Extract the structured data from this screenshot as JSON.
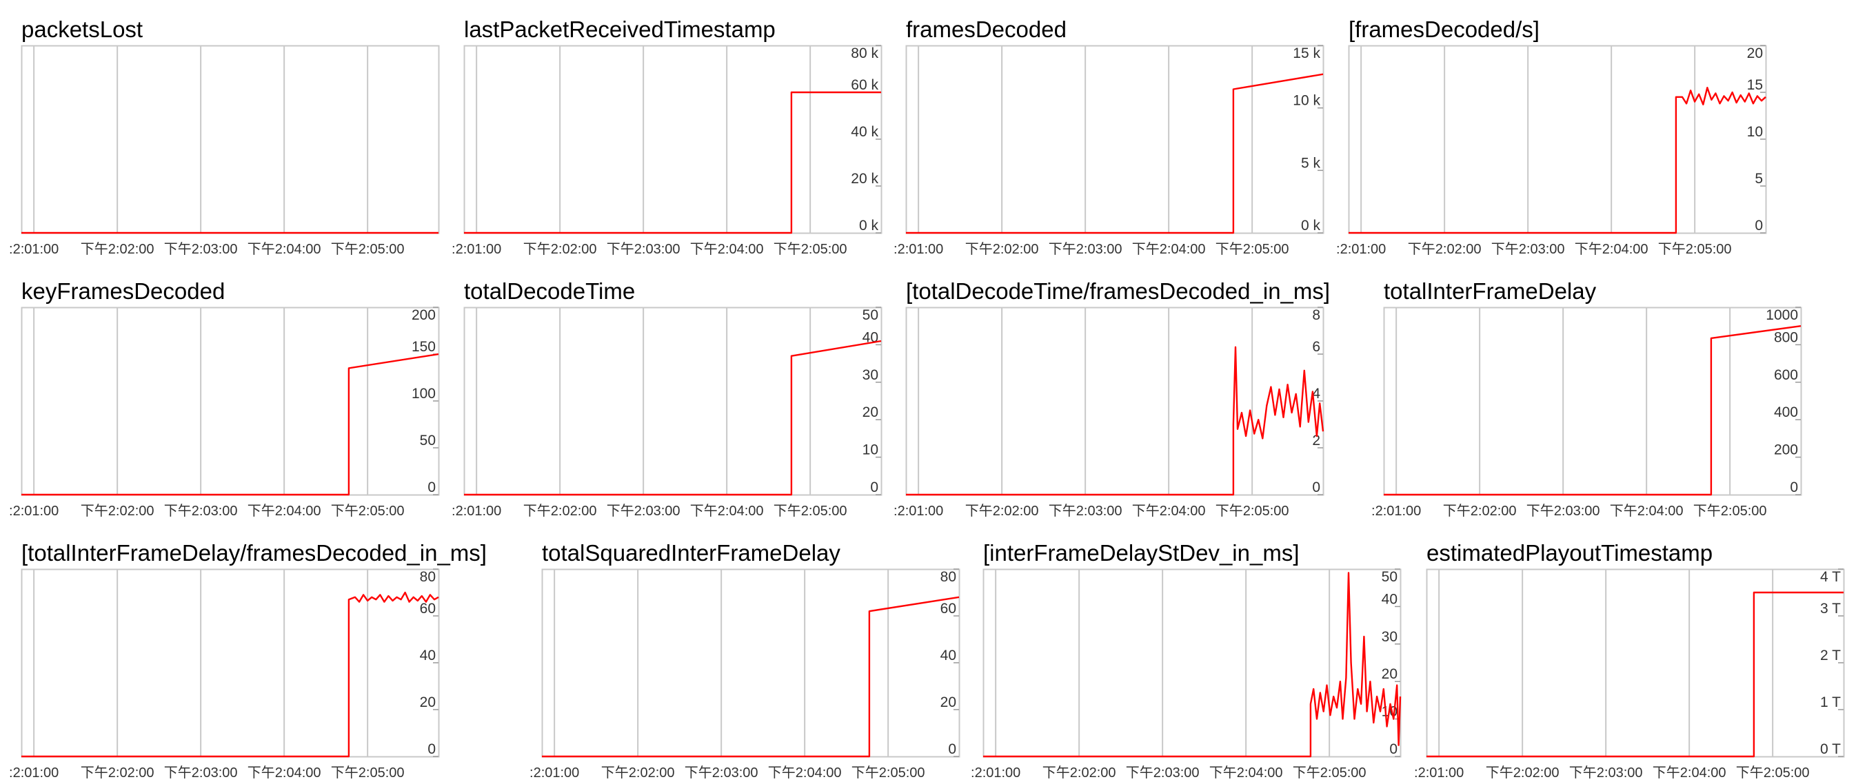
{
  "x_ticks": [
    ":2:01:00",
    "下午2:02:00",
    "下午2:03:00",
    "下午2:04:00",
    "下午2:05:00"
  ],
  "line_color": "#ff0000",
  "grid_color": "#c8c8c8",
  "chart_data": [
    {
      "type": "line",
      "title": "packetsLost",
      "yticks": [],
      "ylim": [
        0,
        1
      ],
      "series": [
        {
          "values": [
            [
              0,
              0
            ],
            [
              100,
              0
            ]
          ]
        }
      ],
      "grid": true
    },
    {
      "type": "line",
      "title": "lastPacketReceivedTimestamp",
      "yticks": [
        "0 k",
        "20 k",
        "40 k",
        "60 k",
        "80 k"
      ],
      "ylim": [
        0,
        80
      ],
      "series": [
        {
          "values": [
            [
              0,
              0
            ],
            [
              78.5,
              0
            ],
            [
              78.5,
              60
            ],
            [
              100,
              60
            ]
          ]
        }
      ],
      "grid": true
    },
    {
      "type": "line",
      "title": "framesDecoded",
      "yticks": [
        "0 k",
        "5 k",
        "10 k",
        "15 k"
      ],
      "ylim": [
        0,
        15
      ],
      "series": [
        {
          "values": [
            [
              0,
              0
            ],
            [
              78.5,
              0
            ],
            [
              78.5,
              11.5
            ],
            [
              100,
              12.7
            ]
          ]
        }
      ],
      "grid": true
    },
    {
      "type": "line",
      "title": "[framesDecoded/s]",
      "yticks": [
        "0",
        "5",
        "10",
        "15",
        "20"
      ],
      "ylim": [
        0,
        20
      ],
      "series": [
        {
          "values": [
            [
              0,
              0
            ],
            [
              78.5,
              0
            ],
            [
              78.5,
              14.5
            ],
            [
              80,
              14.5
            ],
            [
              81,
              13.8
            ],
            [
              82,
              15.2
            ],
            [
              83,
              14
            ],
            [
              84,
              14.8
            ],
            [
              85,
              13.7
            ],
            [
              86,
              15.5
            ],
            [
              87,
              14.2
            ],
            [
              88,
              14.9
            ],
            [
              89,
              13.8
            ],
            [
              90,
              14.6
            ],
            [
              91,
              14.1
            ],
            [
              92,
              15
            ],
            [
              93,
              13.9
            ],
            [
              94,
              14.7
            ],
            [
              95,
              14
            ],
            [
              96,
              14.9
            ],
            [
              97,
              13.8
            ],
            [
              98,
              14.6
            ],
            [
              99,
              14.1
            ],
            [
              100,
              14.5
            ]
          ]
        }
      ],
      "grid": true
    },
    {
      "type": "line",
      "title": "keyFramesDecoded",
      "yticks": [
        "0",
        "50",
        "100",
        "150",
        "200"
      ],
      "ylim": [
        0,
        200
      ],
      "series": [
        {
          "values": [
            [
              0,
              0
            ],
            [
              78.5,
              0
            ],
            [
              78.5,
              135
            ],
            [
              100,
              150
            ]
          ]
        }
      ],
      "grid": true
    },
    {
      "type": "line",
      "title": "totalDecodeTime",
      "yticks": [
        "0",
        "10",
        "20",
        "30",
        "40",
        "50"
      ],
      "ylim": [
        0,
        50
      ],
      "series": [
        {
          "values": [
            [
              0,
              0
            ],
            [
              78.5,
              0
            ],
            [
              78.5,
              37
            ],
            [
              100,
              41
            ]
          ]
        }
      ],
      "grid": true
    },
    {
      "type": "line",
      "title": "[totalDecodeTime/framesDecoded_in_ms]",
      "yticks": [
        "0",
        "2",
        "4",
        "6",
        "8"
      ],
      "ylim": [
        0,
        8
      ],
      "series": [
        {
          "values": [
            [
              0,
              0
            ],
            [
              78.5,
              0
            ],
            [
              78.5,
              3
            ],
            [
              79,
              6.3
            ],
            [
              79.5,
              2.8
            ],
            [
              80.5,
              3.5
            ],
            [
              81.5,
              2.5
            ],
            [
              82.5,
              3.6
            ],
            [
              83.5,
              2.6
            ],
            [
              84.5,
              3.2
            ],
            [
              85.5,
              2.4
            ],
            [
              86.5,
              3.8
            ],
            [
              87.5,
              4.6
            ],
            [
              88.5,
              3.4
            ],
            [
              89.5,
              4.5
            ],
            [
              90.5,
              3.3
            ],
            [
              91.5,
              4.7
            ],
            [
              92.5,
              3.5
            ],
            [
              93.5,
              4.3
            ],
            [
              94.5,
              2.9
            ],
            [
              95.5,
              5.3
            ],
            [
              96.5,
              3.1
            ],
            [
              97.5,
              4.4
            ],
            [
              98.5,
              2.5
            ],
            [
              99.2,
              3.9
            ],
            [
              100,
              2.7
            ]
          ]
        }
      ],
      "grid": true
    },
    {
      "type": "line",
      "title": "totalInterFrameDelay",
      "yticks": [
        "0",
        "200",
        "400",
        "600",
        "800",
        "1000"
      ],
      "ylim": [
        0,
        1000
      ],
      "series": [
        {
          "values": [
            [
              0,
              0
            ],
            [
              78.5,
              0
            ],
            [
              78.5,
              835
            ],
            [
              100,
              900
            ]
          ]
        }
      ],
      "grid": true
    },
    {
      "type": "line",
      "title": "[totalInterFrameDelay/framesDecoded_in_ms]",
      "yticks": [
        "0",
        "20",
        "40",
        "60",
        "80"
      ],
      "ylim": [
        0,
        80
      ],
      "series": [
        {
          "values": [
            [
              0,
              0
            ],
            [
              78.5,
              0
            ],
            [
              78.5,
              67
            ],
            [
              80,
              68
            ],
            [
              81,
              66
            ],
            [
              82,
              69
            ],
            [
              83,
              66.5
            ],
            [
              84,
              68
            ],
            [
              85,
              67
            ],
            [
              86,
              69
            ],
            [
              87,
              66
            ],
            [
              88,
              68.5
            ],
            [
              89,
              66.5
            ],
            [
              90,
              68
            ],
            [
              91,
              67
            ],
            [
              92,
              70
            ],
            [
              93,
              66
            ],
            [
              94,
              68
            ],
            [
              95,
              66.5
            ],
            [
              96,
              68.5
            ],
            [
              97,
              66
            ],
            [
              98,
              69
            ],
            [
              99,
              67
            ],
            [
              100,
              68
            ]
          ]
        }
      ],
      "grid": true
    },
    {
      "type": "line",
      "title": "totalSquaredInterFrameDelay",
      "yticks": [
        "0",
        "20",
        "40",
        "60",
        "80"
      ],
      "ylim": [
        0,
        80
      ],
      "series": [
        {
          "values": [
            [
              0,
              0
            ],
            [
              78.5,
              0
            ],
            [
              78.5,
              62
            ],
            [
              100,
              68
            ]
          ]
        }
      ],
      "grid": true
    },
    {
      "type": "line",
      "title": "[interFrameDelayStDev_in_ms]",
      "yticks": [
        "0",
        "10",
        "20",
        "30",
        "40",
        "50"
      ],
      "ylim": [
        0,
        50
      ],
      "series": [
        {
          "values": [
            [
              0,
              0
            ],
            [
              78.5,
              0
            ],
            [
              78.5,
              14
            ],
            [
              79.2,
              18
            ],
            [
              80,
              10
            ],
            [
              80.8,
              17
            ],
            [
              81.6,
              12
            ],
            [
              82.4,
              19
            ],
            [
              83.2,
              11
            ],
            [
              84,
              16
            ],
            [
              84.8,
              13
            ],
            [
              85.6,
              20
            ],
            [
              86.2,
              10
            ],
            [
              87,
              21
            ],
            [
              87.6,
              49
            ],
            [
              88.2,
              25
            ],
            [
              89,
              10
            ],
            [
              89.8,
              18
            ],
            [
              90.6,
              14
            ],
            [
              91.3,
              32
            ],
            [
              92,
              12
            ],
            [
              92.8,
              20
            ],
            [
              93.6,
              9
            ],
            [
              94.4,
              16
            ],
            [
              95.2,
              12
            ],
            [
              96,
              18
            ],
            [
              96.8,
              8
            ],
            [
              97.6,
              14
            ],
            [
              98.4,
              10
            ],
            [
              99.2,
              19
            ],
            [
              99.6,
              3
            ],
            [
              100,
              16
            ]
          ]
        }
      ],
      "grid": true
    },
    {
      "type": "line",
      "title": "estimatedPlayoutTimestamp",
      "yticks": [
        "0 T",
        "1 T",
        "2 T",
        "3 T",
        "4 T"
      ],
      "ylim": [
        0,
        4
      ],
      "series": [
        {
          "values": [
            [
              0,
              0
            ],
            [
              78.5,
              0
            ],
            [
              78.5,
              3.5
            ],
            [
              100,
              3.5
            ]
          ]
        }
      ],
      "grid": true
    }
  ]
}
